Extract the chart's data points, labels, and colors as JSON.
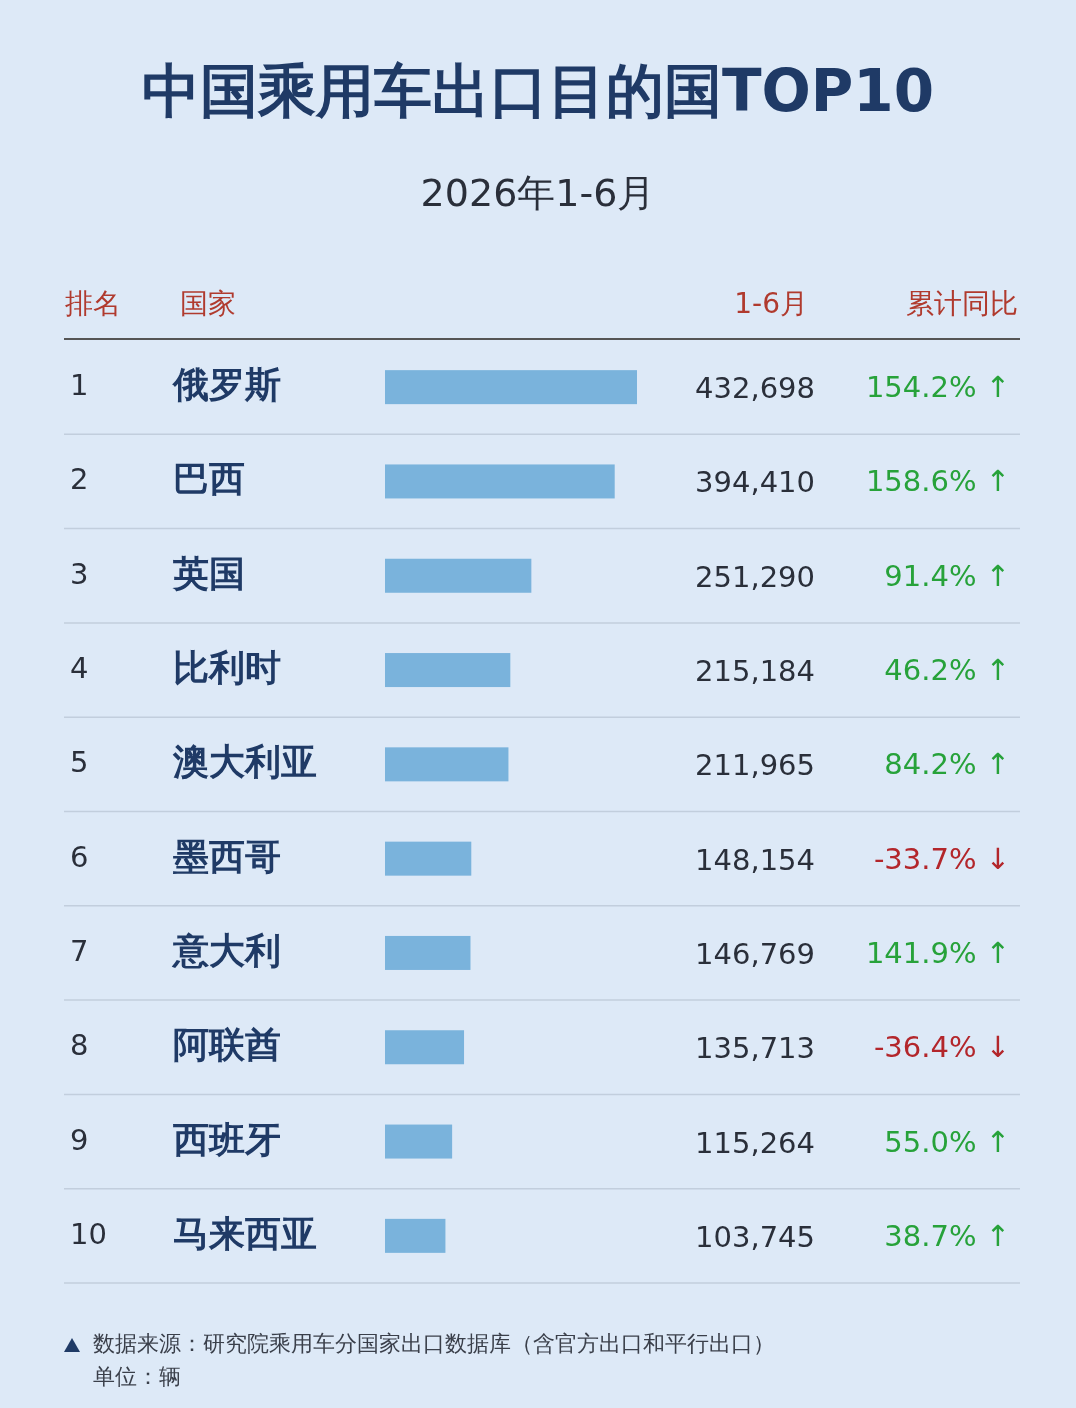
{
  "chart_data": {
    "type": "bar",
    "orientation": "horizontal",
    "title": "中国乘用车出口目的国TOP10",
    "subtitle": "2026年1-6月",
    "categories": [
      "俄罗斯",
      "巴西",
      "英国",
      "比利时",
      "澳大利亚",
      "墨西哥",
      "意大利",
      "阿联酋",
      "西班牙",
      "马来西亚"
    ],
    "values": [
      432698,
      394410,
      251290,
      215184,
      211965,
      148154,
      146769,
      135713,
      115264,
      103745
    ],
    "value_labels": [
      "432,698",
      "394,410",
      "251,290",
      "215,184",
      "211,965",
      "148,154",
      "146,769",
      "135,713",
      "115,264",
      "103,745"
    ],
    "color": "#7ab3dc",
    "annotations": [
      "排名",
      "国家",
      "1-6月",
      "累计同比",
      "1",
      "2",
      "3",
      "4",
      "5",
      "6",
      "7",
      "8",
      "9",
      "10",
      "154.2% ↑",
      "158.6% ↑",
      "91.4% ↑",
      "46.2% ↑",
      "84.2% ↑",
      "-33.7% ↓",
      "141.9% ↑",
      "-36.4% ↓",
      "55.0% ↑",
      "38.7% ↑",
      "数据来源：研究院乘用车分国家出口数据库（含官方出口和平行出口）",
      "单位：辆"
    ]
  }
}
